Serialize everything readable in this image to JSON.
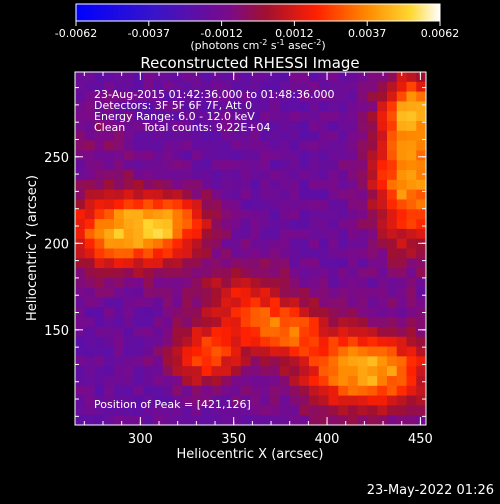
{
  "colorbar": {
    "ticks": [
      "-0.0062",
      "-0.0037",
      "-0.0012",
      "0.0012",
      "0.0037",
      "0.0062"
    ],
    "unit_main": "(photons cm",
    "unit_sup1": "-2",
    "unit_mid": " s",
    "unit_sup2": "-1",
    "unit_mid2": " asec",
    "unit_sup3": "-2",
    "unit_end": ")"
  },
  "chart_data": {
    "type": "heatmap",
    "title": "Reconstructed RHESSI Image",
    "xlabel": "Heliocentric X (arcsec)",
    "ylabel": "Heliocentric Y (arcsec)",
    "xlim": [
      265,
      453
    ],
    "ylim": [
      95,
      299
    ],
    "x_ticks": [
      300,
      350,
      400,
      450
    ],
    "y_ticks": [
      150,
      200,
      250
    ],
    "colorbar_range": [
      -0.0062,
      0.0062
    ],
    "peak_position": [
      421,
      126
    ],
    "info_lines": [
      "23-Aug-2015 01:42:36.000 to 01:48:36.000",
      "Detectors: 3F 5F 6F 7F, Att 0",
      "Energy Range: 6.0 - 12.0 keV",
      "Clean     Total counts: 9.22E+04"
    ],
    "peak_label": "Position of Peak = [421,126]",
    "sources": [
      {
        "x": 290,
        "y": 207,
        "amp": 0.0058,
        "sx": 22,
        "sy": 16
      },
      {
        "x": 318,
        "y": 212,
        "amp": 0.0034,
        "sx": 14,
        "sy": 12
      },
      {
        "x": 355,
        "y": 168,
        "amp": 0.003,
        "sx": 18,
        "sy": 14
      },
      {
        "x": 335,
        "y": 135,
        "amp": 0.0042,
        "sx": 14,
        "sy": 12
      },
      {
        "x": 378,
        "y": 150,
        "amp": 0.004,
        "sx": 16,
        "sy": 11
      },
      {
        "x": 421,
        "y": 126,
        "amp": 0.0062,
        "sx": 24,
        "sy": 16
      },
      {
        "x": 445,
        "y": 240,
        "amp": 0.0058,
        "sx": 15,
        "sy": 30
      },
      {
        "x": 445,
        "y": 280,
        "amp": 0.0036,
        "sx": 10,
        "sy": 12
      },
      {
        "x": 278,
        "y": 260,
        "amp": 0.0008,
        "sx": 12,
        "sy": 14
      }
    ],
    "background": -0.0016
  },
  "timestamp": "23-May-2022 01:26"
}
